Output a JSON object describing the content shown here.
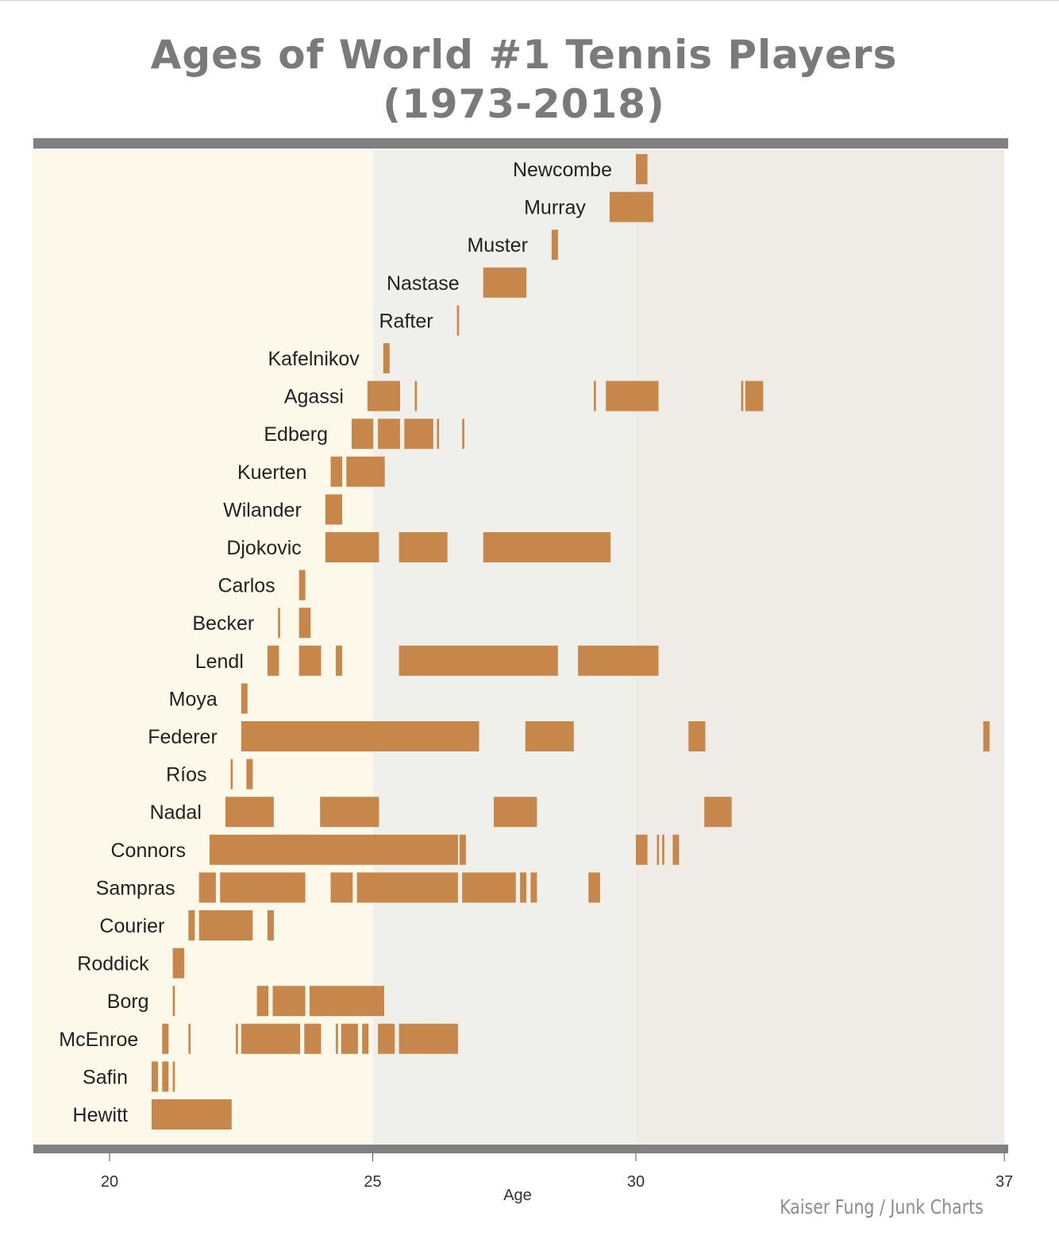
{
  "title_lines": [
    "Ages of World #1 Tennis Players",
    "(1973-2018)"
  ],
  "credit": "Kaiser Fung / Junk Charts",
  "colors": {
    "bar": "#C8874A",
    "zone_young": "#FCF9EA",
    "zone_mid": "#EFF0EC",
    "zone_old": "#EFEBE7",
    "frame": "#808080",
    "label": "#222222",
    "axis_text": "#333333"
  },
  "chart_data": {
    "type": "bar",
    "title": "Ages of World #1 Tennis Players (1973-2018)",
    "xlabel": "Age",
    "ylabel": "",
    "xlim": [
      18.5,
      37
    ],
    "xticks": [
      20,
      25,
      30,
      37
    ],
    "shaded_zones": [
      {
        "from": 18.5,
        "to": 25
      },
      {
        "from": 25,
        "to": 30
      },
      {
        "from": 30,
        "to": 37
      }
    ],
    "players": [
      {
        "name": "Newcombe",
        "spells": [
          [
            30.0,
            30.22
          ]
        ]
      },
      {
        "name": "Murray",
        "spells": [
          [
            29.5,
            30.33
          ]
        ]
      },
      {
        "name": "Muster",
        "spells": [
          [
            28.4,
            28.52
          ]
        ]
      },
      {
        "name": "Nastase",
        "spells": [
          [
            27.1,
            27.92
          ]
        ]
      },
      {
        "name": "Rafter",
        "spells": [
          [
            26.6,
            26.64
          ]
        ]
      },
      {
        "name": "Kafelnikov",
        "spells": [
          [
            25.2,
            25.32
          ]
        ]
      },
      {
        "name": "Agassi",
        "spells": [
          [
            24.9,
            25.52
          ],
          [
            25.8,
            25.84
          ],
          [
            29.2,
            29.24
          ],
          [
            29.43,
            30.43
          ],
          [
            32.0,
            32.04
          ],
          [
            32.08,
            32.42
          ]
        ]
      },
      {
        "name": "Edberg",
        "spells": [
          [
            24.6,
            25.01
          ],
          [
            25.1,
            25.52
          ],
          [
            25.6,
            26.15
          ],
          [
            26.22,
            26.26
          ],
          [
            26.7,
            26.74
          ]
        ]
      },
      {
        "name": "Kuerten",
        "spells": [
          [
            24.2,
            24.42
          ],
          [
            24.5,
            25.23
          ]
        ]
      },
      {
        "name": "Wilander",
        "spells": [
          [
            24.1,
            24.42
          ]
        ]
      },
      {
        "name": "Djokovic",
        "spells": [
          [
            24.1,
            25.12
          ],
          [
            25.5,
            26.42
          ],
          [
            27.1,
            29.52
          ]
        ]
      },
      {
        "name": "Carlos",
        "spells": [
          [
            23.6,
            23.72
          ]
        ]
      },
      {
        "name": "Becker",
        "spells": [
          [
            23.2,
            23.24
          ],
          [
            23.6,
            23.82
          ]
        ]
      },
      {
        "name": "Lendl",
        "spells": [
          [
            23.0,
            23.22
          ],
          [
            23.6,
            24.02
          ],
          [
            24.3,
            24.42
          ],
          [
            25.5,
            28.52
          ],
          [
            28.9,
            30.43
          ]
        ]
      },
      {
        "name": "Moya",
        "spells": [
          [
            22.5,
            22.62
          ]
        ]
      },
      {
        "name": "Federer",
        "spells": [
          [
            22.5,
            27.02
          ],
          [
            27.9,
            28.82
          ],
          [
            31.0,
            31.32
          ],
          [
            36.6,
            36.72
          ]
        ]
      },
      {
        "name": "Ríos",
        "spells": [
          [
            22.3,
            22.34
          ],
          [
            22.6,
            22.72
          ]
        ]
      },
      {
        "name": "Nadal",
        "spells": [
          [
            22.2,
            23.12
          ],
          [
            24.0,
            25.12
          ],
          [
            27.3,
            28.12
          ],
          [
            31.3,
            31.82
          ]
        ]
      },
      {
        "name": "Connors",
        "spells": [
          [
            21.9,
            26.62
          ],
          [
            26.65,
            26.77
          ],
          [
            30.0,
            30.22
          ],
          [
            30.4,
            30.44
          ],
          [
            30.5,
            30.54
          ],
          [
            30.7,
            30.82
          ]
        ]
      },
      {
        "name": "Sampras",
        "spells": [
          [
            21.7,
            22.02
          ],
          [
            22.1,
            23.72
          ],
          [
            24.2,
            24.62
          ],
          [
            24.7,
            26.62
          ],
          [
            26.7,
            27.72
          ],
          [
            27.8,
            27.92
          ],
          [
            28.0,
            28.12
          ],
          [
            29.1,
            29.32
          ]
        ]
      },
      {
        "name": "Courier",
        "spells": [
          [
            21.5,
            21.62
          ],
          [
            21.7,
            22.72
          ],
          [
            23.0,
            23.12
          ]
        ]
      },
      {
        "name": "Roddick",
        "spells": [
          [
            21.2,
            21.42
          ]
        ]
      },
      {
        "name": "Borg",
        "spells": [
          [
            21.2,
            21.24
          ],
          [
            22.8,
            23.02
          ],
          [
            23.1,
            23.72
          ],
          [
            23.8,
            25.22
          ]
        ]
      },
      {
        "name": "McEnroe",
        "spells": [
          [
            21.0,
            21.12
          ],
          [
            21.5,
            21.54
          ],
          [
            22.4,
            22.44
          ],
          [
            22.5,
            23.62
          ],
          [
            23.7,
            24.02
          ],
          [
            24.3,
            24.34
          ],
          [
            24.4,
            24.72
          ],
          [
            24.8,
            24.92
          ],
          [
            25.1,
            25.42
          ],
          [
            25.5,
            26.62
          ]
        ]
      },
      {
        "name": "Safin",
        "spells": [
          [
            20.8,
            20.92
          ],
          [
            21.0,
            21.12
          ],
          [
            21.2,
            21.24
          ]
        ]
      },
      {
        "name": "Hewitt",
        "spells": [
          [
            20.8,
            22.32
          ]
        ]
      }
    ]
  }
}
